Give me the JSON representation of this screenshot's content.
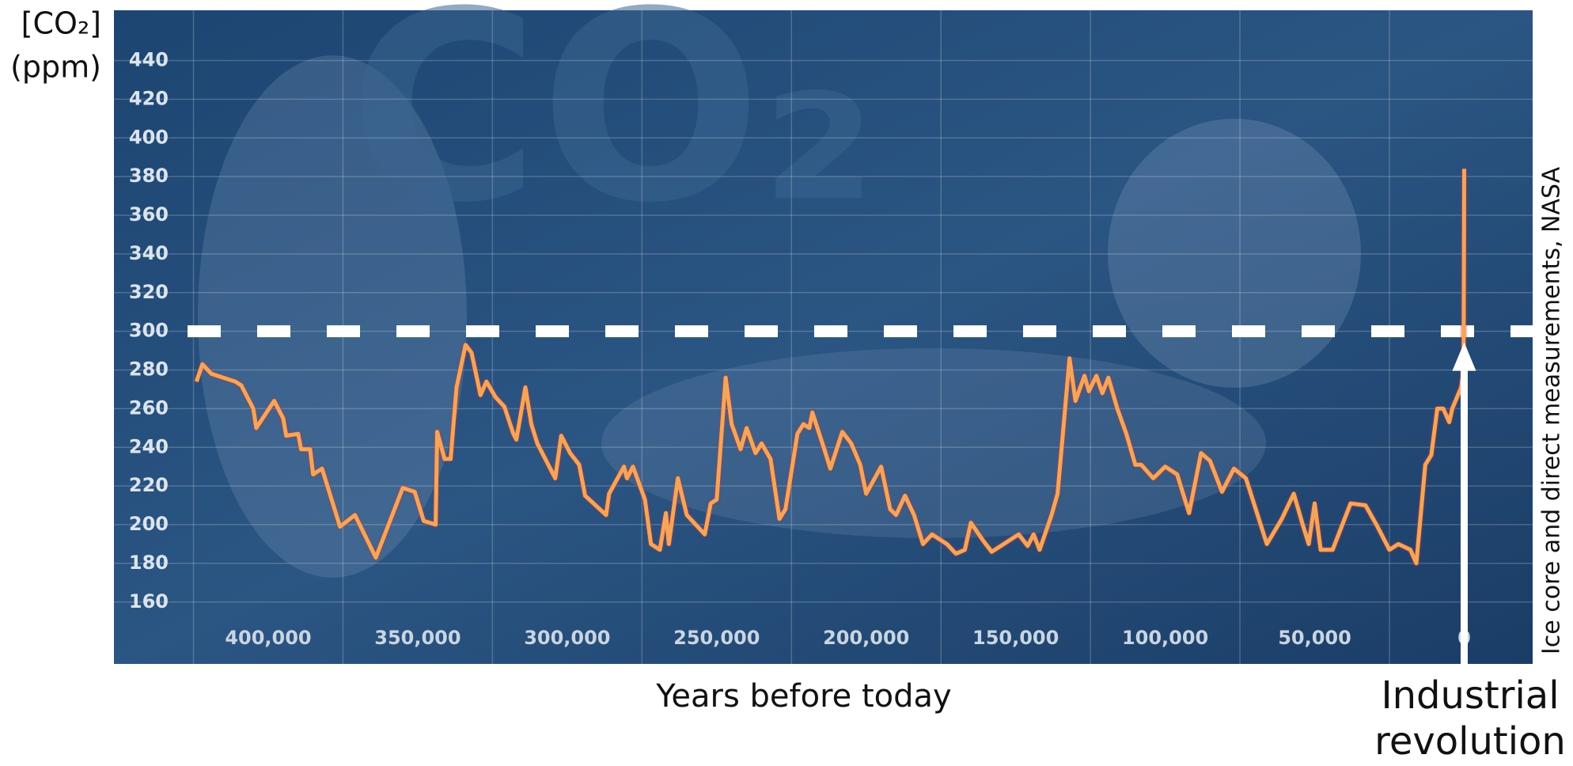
{
  "chart_data": {
    "type": "line",
    "watermark": "CO₂",
    "ylabel": [
      "[CO₂]",
      "(ppm)"
    ],
    "xlabel": "Years before today",
    "credit": "Ice core and direct measurements, NASA",
    "x": [
      424000,
      422000,
      419000,
      411000,
      409000,
      405000,
      404000,
      398000,
      395000,
      394000,
      390000,
      389000,
      386000,
      385000,
      382000,
      376000,
      371000,
      364000,
      355000,
      351000,
      348000,
      344000,
      343500,
      341000,
      339000,
      337000,
      334000,
      332000,
      329000,
      327000,
      324000,
      321000,
      318000,
      317000,
      314000,
      312000,
      310000,
      304000,
      302000,
      299000,
      296000,
      294000,
      287000,
      286000,
      281000,
      280000,
      278000,
      274000,
      272000,
      269000,
      267000,
      266000,
      263000,
      260000,
      254000,
      252000,
      250000,
      247000,
      245000,
      242000,
      240000,
      237000,
      235000,
      232000,
      229000,
      227000,
      223000,
      221000,
      219000,
      218000,
      214000,
      212000,
      208000,
      205000,
      202000,
      200000,
      195000,
      192000,
      190000,
      187000,
      184000,
      181000,
      178000,
      173000,
      170000,
      167000,
      165000,
      161000,
      158000,
      149000,
      146000,
      144000,
      142000,
      138000,
      136000,
      132000,
      130000,
      127000,
      125500,
      123000,
      121000,
      119000,
      116000,
      113000,
      110000,
      108000,
      104000,
      100000,
      96000,
      92000,
      88000,
      85000,
      81000,
      77000,
      73000,
      66000,
      61000,
      57000,
      54000,
      52000,
      50000,
      48000,
      44000,
      38000,
      33000,
      29000,
      25000,
      22000,
      18000,
      16000,
      13000,
      11000,
      9000,
      7000,
      5000,
      4000,
      1000,
      200,
      0
    ],
    "series": [
      {
        "color": "#f5a55a",
        "values": [
          274,
          283,
          278,
          274,
          272,
          260,
          250,
          264,
          255,
          246,
          247,
          239,
          239,
          226,
          229,
          199,
          205,
          183,
          219,
          217,
          202,
          200,
          248,
          234,
          234,
          271,
          293,
          289,
          267,
          274,
          266,
          261,
          247,
          244,
          271,
          252,
          242,
          224,
          246,
          237,
          231,
          215,
          205,
          216,
          230,
          224,
          230,
          213,
          190,
          187,
          206,
          190,
          224,
          205,
          195,
          211,
          213,
          276,
          252,
          239,
          250,
          237,
          242,
          234,
          203,
          208,
          247,
          252,
          250,
          258,
          239,
          229,
          248,
          242,
          231,
          216,
          230,
          208,
          205,
          215,
          205,
          190,
          195,
          190,
          185,
          187,
          201,
          192,
          186,
          195,
          189,
          195,
          187,
          205,
          216,
          286,
          264,
          277,
          269,
          277,
          268,
          276,
          260,
          247,
          231,
          231,
          224,
          230,
          226,
          206,
          237,
          233,
          217,
          229,
          224,
          190,
          203,
          216,
          200,
          190,
          211,
          187,
          187,
          211,
          210,
          199,
          187,
          190,
          187,
          180,
          231,
          236,
          260,
          260,
          253,
          260,
          271,
          280,
          384
        ]
      }
    ],
    "xlim": [
      451600,
      -22900
    ],
    "ylim": [
      128,
      466
    ],
    "xticks": [
      {
        "value": 400000,
        "label": "400,000"
      },
      {
        "value": 350000,
        "label": "350,000"
      },
      {
        "value": 300000,
        "label": "300,000"
      },
      {
        "value": 250000,
        "label": "250,000"
      },
      {
        "value": 200000,
        "label": "200,000"
      },
      {
        "value": 150000,
        "label": "150,000"
      },
      {
        "value": 100000,
        "label": "100,000"
      },
      {
        "value": 50000,
        "label": "50,000"
      },
      0
    ],
    "yticks": [
      160,
      180,
      200,
      220,
      240,
      260,
      280,
      300,
      320,
      340,
      360,
      380,
      400,
      420,
      440
    ],
    "grid": true,
    "xgrid": [
      425000,
      375000,
      325000,
      275000,
      225000,
      175000,
      125000,
      75000,
      25000
    ],
    "reference_line": {
      "value": 300,
      "color": "#ffffff"
    },
    "annotation": {
      "text": [
        "Industrial",
        "revolution"
      ],
      "x": 0
    }
  }
}
